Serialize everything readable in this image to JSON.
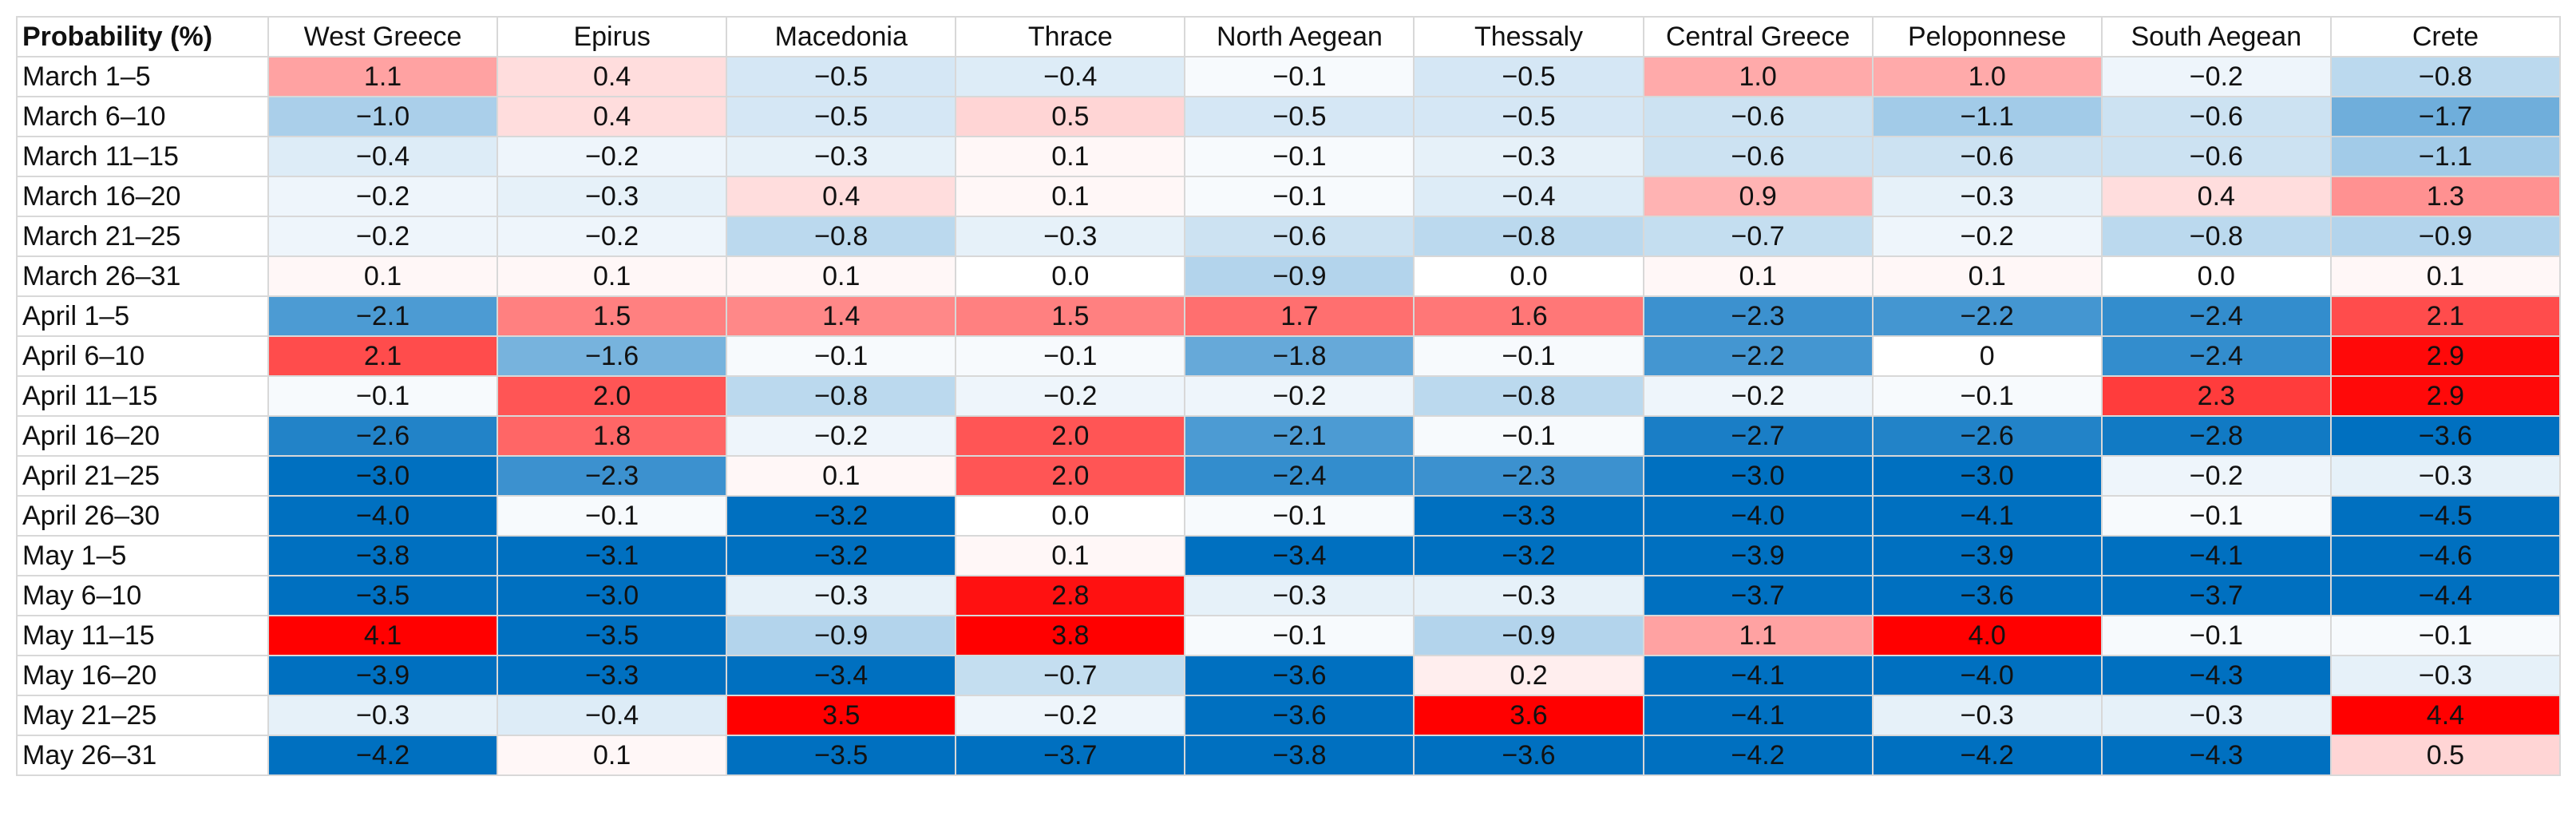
{
  "chart_data": {
    "type": "heatmap",
    "title": "Probability (%)",
    "columns": [
      "West Greece",
      "Epirus",
      "Macedonia",
      "Thrace",
      "North Aegean",
      "Thessaly",
      "Central Greece",
      "Peloponnese",
      "South Aegean",
      "Crete"
    ],
    "rows": [
      {
        "label": "March 1–5",
        "values": [
          "1.1",
          "0.4",
          "−0.5",
          "−0.4",
          "−0.1",
          "−0.5",
          "1.0",
          "1.0",
          "−0.2",
          "−0.8"
        ]
      },
      {
        "label": "March 6–10",
        "values": [
          "−1.0",
          "0.4",
          "−0.5",
          "0.5",
          "−0.5",
          "−0.5",
          "−0.6",
          "−1.1",
          "−0.6",
          "−1.7"
        ]
      },
      {
        "label": "March 11–15",
        "values": [
          "−0.4",
          "−0.2",
          "−0.3",
          "0.1",
          "−0.1",
          "−0.3",
          "−0.6",
          "−0.6",
          "−0.6",
          "−1.1"
        ]
      },
      {
        "label": "March 16–20",
        "values": [
          "−0.2",
          "−0.3",
          "0.4",
          "0.1",
          "−0.1",
          "−0.4",
          "0.9",
          "−0.3",
          "0.4",
          "1.3"
        ]
      },
      {
        "label": "March 21–25",
        "values": [
          "−0.2",
          "−0.2",
          "−0.8",
          "−0.3",
          "−0.6",
          "−0.8",
          "−0.7",
          "−0.2",
          "−0.8",
          "−0.9"
        ]
      },
      {
        "label": "March 26–31",
        "values": [
          "0.1",
          "0.1",
          "0.1",
          "0.0",
          "−0.9",
          "0.0",
          "0.1",
          "0.1",
          "0.0",
          "0.1"
        ]
      },
      {
        "label": "April 1–5",
        "values": [
          "−2.1",
          "1.5",
          "1.4",
          "1.5",
          "1.7",
          "1.6",
          "−2.3",
          "−2.2",
          "−2.4",
          "2.1"
        ]
      },
      {
        "label": "April 6–10",
        "values": [
          "2.1",
          "−1.6",
          "−0.1",
          "−0.1",
          "−1.8",
          "−0.1",
          "−2.2",
          "0",
          "−2.4",
          "2.9"
        ]
      },
      {
        "label": "April 11–15",
        "values": [
          "−0.1",
          "2.0",
          "−0.8",
          "−0.2",
          "−0.2",
          "−0.8",
          "−0.2",
          "−0.1",
          "2.3",
          "2.9"
        ]
      },
      {
        "label": "April 16–20",
        "values": [
          "−2.6",
          "1.8",
          "−0.2",
          "2.0",
          "−2.1",
          "−0.1",
          "−2.7",
          "−2.6",
          "−2.8",
          "−3.6"
        ]
      },
      {
        "label": "April 21–25",
        "values": [
          "−3.0",
          "−2.3",
          "0.1",
          "2.0",
          "−2.4",
          "−2.3",
          "−3.0",
          "−3.0",
          "−0.2",
          "−0.3"
        ]
      },
      {
        "label": "April 26–30",
        "values": [
          "−4.0",
          "−0.1",
          "−3.2",
          "0.0",
          "−0.1",
          "−3.3",
          "−4.0",
          "−4.1",
          "−0.1",
          "−4.5"
        ]
      },
      {
        "label": "May 1–5",
        "values": [
          "−3.8",
          "−3.1",
          "−3.2",
          "0.1",
          "−3.4",
          "−3.2",
          "−3.9",
          "−3.9",
          "−4.1",
          "−4.6"
        ]
      },
      {
        "label": "May 6–10",
        "values": [
          "−3.5",
          "−3.0",
          "−0.3",
          "2.8",
          "−0.3",
          "−0.3",
          "−3.7",
          "−3.6",
          "−3.7",
          "−4.4"
        ]
      },
      {
        "label": "May 11–15",
        "values": [
          "4.1",
          "−3.5",
          "−0.9",
          "3.8",
          "−0.1",
          "−0.9",
          "1.1",
          "4.0",
          "−0.1",
          "−0.1"
        ]
      },
      {
        "label": "May 16–20",
        "values": [
          "−3.9",
          "−3.3",
          "−3.4",
          "−0.7",
          "−3.6",
          "0.2",
          "−4.1",
          "−4.0",
          "−4.3",
          "−0.3"
        ]
      },
      {
        "label": "May 21–25",
        "values": [
          "−0.3",
          "−0.4",
          "3.5",
          "−0.2",
          "−3.6",
          "3.6",
          "−4.1",
          "−0.3",
          "−0.3",
          "4.4"
        ]
      },
      {
        "label": "May 26–31",
        "values": [
          "−4.2",
          "0.1",
          "−3.5",
          "−3.7",
          "−3.8",
          "−3.6",
          "−4.2",
          "−4.2",
          "−4.3",
          "0.5"
        ]
      }
    ],
    "color_scale": {
      "negative": "#0070c0",
      "zero": "#ffffff",
      "positive": "#ff0000",
      "saturation_abs": 3.0
    }
  }
}
